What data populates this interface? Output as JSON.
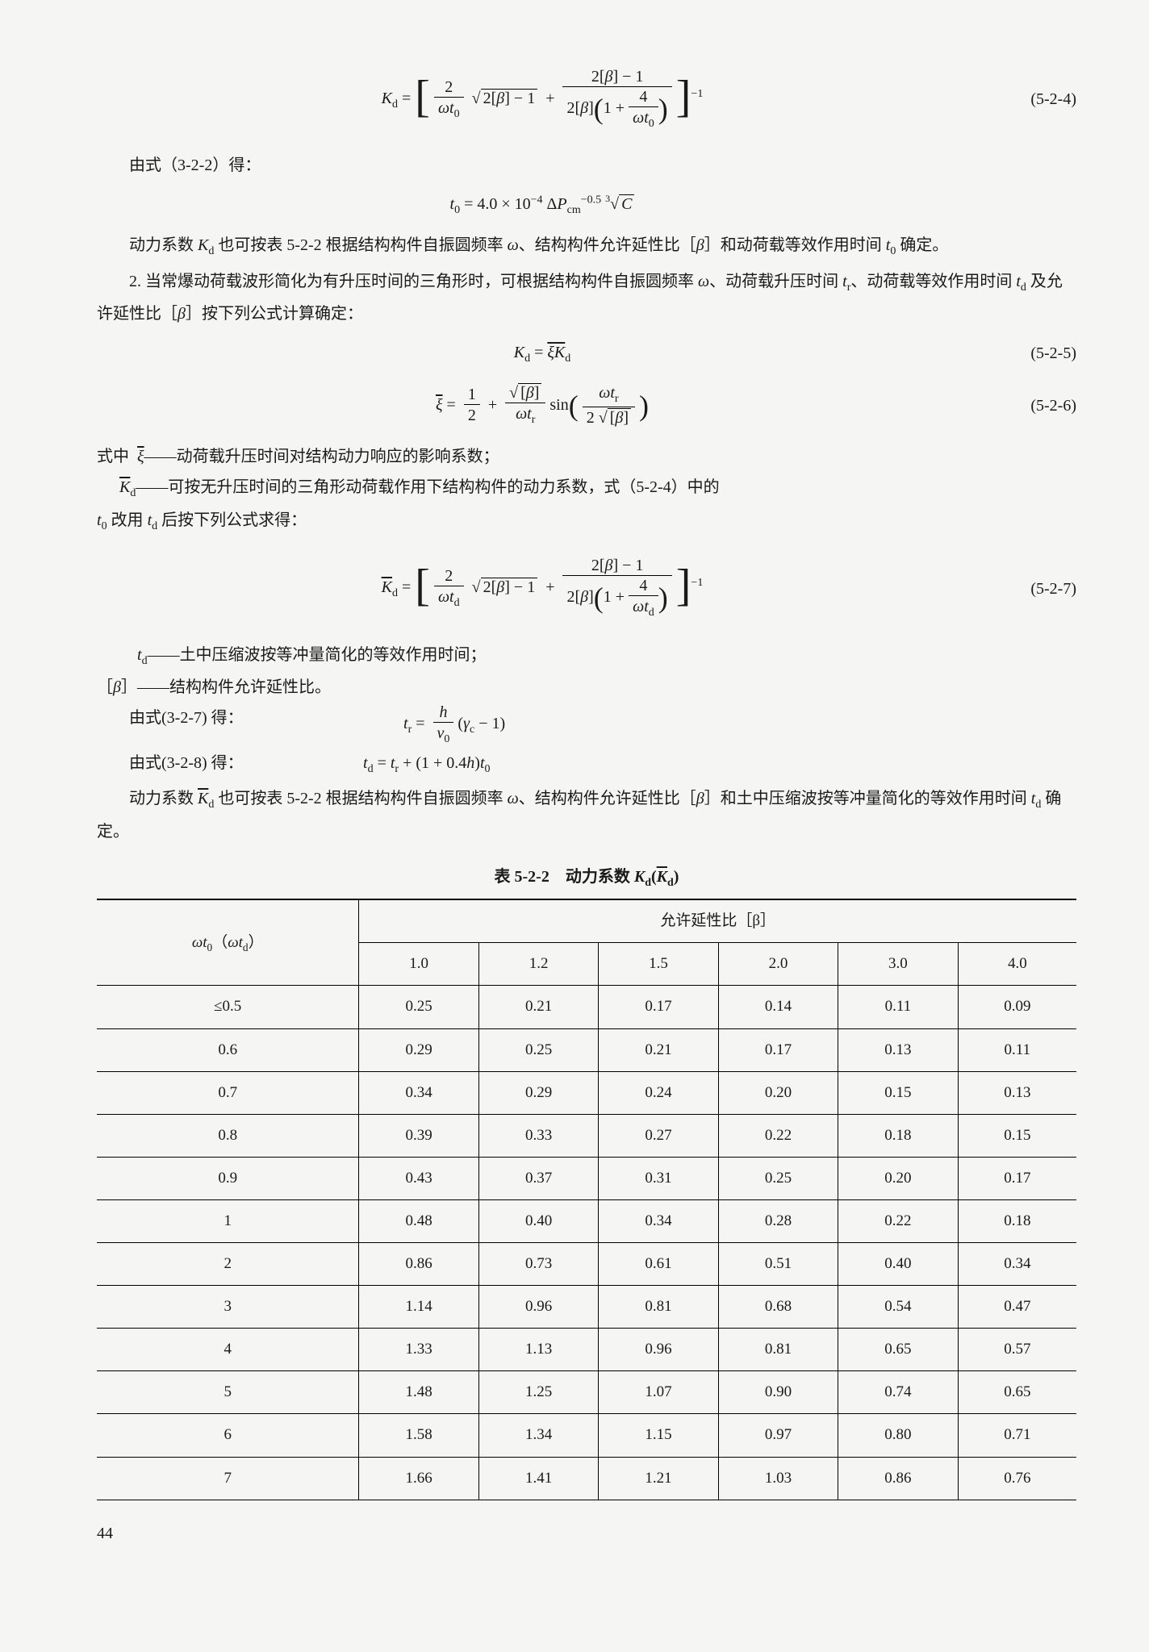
{
  "eq524": {
    "num": "(5-2-4)"
  },
  "line_from322": "由式（3-2-2）得：",
  "para1": "动力系数 Kd 也可按表 5-2-2 根据结构构件自振圆频率 ω、结构构件允许延性比［β］和动荷载等效作用时间 t0 确定。",
  "para2": "2. 当常爆动荷载波形简化为有升压时间的三角形时，可根据结构构件自振圆频率 ω、动荷载升压时间 tr、动荷载等效作用时间 td 及允许延性比［β］按下列公式计算确定：",
  "eq525": {
    "num": "(5-2-5)"
  },
  "eq526": {
    "num": "(5-2-6)"
  },
  "where_label": "式中",
  "xi_desc": "——动荷载升压时间对结构动力响应的影响系数；",
  "kd_desc": "——可按无升压时间的三角形动荷载作用下结构构件的动力系数，式（5-2-4）中的 t0 改用 td 后按下列公式求得：",
  "eq527": {
    "num": "(5-2-7)"
  },
  "td_desc": "——土中压缩波按等冲量简化的等效作用时间；",
  "beta_desc": "——结构构件允许延性比。",
  "from327": "由式(3-2-7) 得：",
  "from328": "由式(3-2-8) 得：",
  "para3": "动力系数 K̄d 也可按表 5-2-2 根据结构构件自振圆频率 ω、结构构件允许延性比［β］和土中压缩波按等冲量简化的等效作用时间 td 确定。",
  "table": {
    "title_prefix": "表 5-2-2　动力系数 ",
    "header_left": "ωt0（ωtd）",
    "header_top": "允许延性比［β］",
    "cols": [
      "1.0",
      "1.2",
      "1.5",
      "2.0",
      "3.0",
      "4.0"
    ],
    "rows": [
      {
        "k": "≤0.5",
        "v": [
          "0.25",
          "0.21",
          "0.17",
          "0.14",
          "0.11",
          "0.09"
        ]
      },
      {
        "k": "0.6",
        "v": [
          "0.29",
          "0.25",
          "0.21",
          "0.17",
          "0.13",
          "0.11"
        ]
      },
      {
        "k": "0.7",
        "v": [
          "0.34",
          "0.29",
          "0.24",
          "0.20",
          "0.15",
          "0.13"
        ]
      },
      {
        "k": "0.8",
        "v": [
          "0.39",
          "0.33",
          "0.27",
          "0.22",
          "0.18",
          "0.15"
        ]
      },
      {
        "k": "0.9",
        "v": [
          "0.43",
          "0.37",
          "0.31",
          "0.25",
          "0.20",
          "0.17"
        ]
      },
      {
        "k": "1",
        "v": [
          "0.48",
          "0.40",
          "0.34",
          "0.28",
          "0.22",
          "0.18"
        ]
      },
      {
        "k": "2",
        "v": [
          "0.86",
          "0.73",
          "0.61",
          "0.51",
          "0.40",
          "0.34"
        ]
      },
      {
        "k": "3",
        "v": [
          "1.14",
          "0.96",
          "0.81",
          "0.68",
          "0.54",
          "0.47"
        ]
      },
      {
        "k": "4",
        "v": [
          "1.33",
          "1.13",
          "0.96",
          "0.81",
          "0.65",
          "0.57"
        ]
      },
      {
        "k": "5",
        "v": [
          "1.48",
          "1.25",
          "1.07",
          "0.90",
          "0.74",
          "0.65"
        ]
      },
      {
        "k": "6",
        "v": [
          "1.58",
          "1.34",
          "1.15",
          "0.97",
          "0.80",
          "0.71"
        ]
      },
      {
        "k": "7",
        "v": [
          "1.66",
          "1.41",
          "1.21",
          "1.03",
          "0.86",
          "0.76"
        ]
      }
    ]
  },
  "pagenum": "44"
}
